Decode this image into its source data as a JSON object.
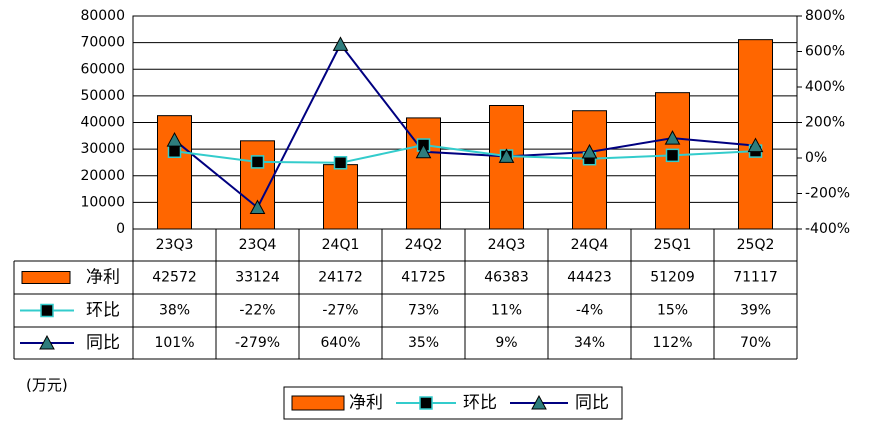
{
  "chart_data": {
    "type": "bar",
    "categories": [
      "23Q3",
      "23Q4",
      "24Q1",
      "24Q2",
      "24Q3",
      "24Q4",
      "25Q1",
      "25Q2"
    ],
    "series": [
      {
        "name": "净利",
        "type": "bar",
        "axis": "left",
        "color": "#FF6600",
        "values": [
          42572,
          33124,
          24172,
          41725,
          46383,
          44423,
          51209,
          71117
        ],
        "labels": [
          "42572",
          "33124",
          "24172",
          "41725",
          "46383",
          "44423",
          "51209",
          "71117"
        ]
      },
      {
        "name": "环比",
        "type": "line",
        "axis": "right",
        "color": "#33CCCC",
        "marker": "square",
        "values": [
          38,
          -22,
          -27,
          73,
          11,
          -4,
          15,
          39
        ],
        "labels": [
          "38%",
          "-22%",
          "-27%",
          "73%",
          "11%",
          "-4%",
          "15%",
          "39%"
        ]
      },
      {
        "name": "同比",
        "type": "line",
        "axis": "right",
        "color": "#000080",
        "marker": "triangle",
        "values": [
          101,
          -279,
          640,
          35,
          9,
          34,
          112,
          70
        ],
        "labels": [
          "101%",
          "-279%",
          "640%",
          "35%",
          "9%",
          "34%",
          "112%",
          "70%"
        ]
      }
    ],
    "y_left": {
      "min": 0,
      "max": 80000,
      "ticks": [
        "0",
        "10000",
        "20000",
        "30000",
        "40000",
        "50000",
        "60000",
        "70000",
        "80000"
      ]
    },
    "y_right": {
      "min": -400,
      "max": 800,
      "ticks": [
        "-400%",
        "-200%",
        "0%",
        "200%",
        "400%",
        "600%",
        "800%"
      ]
    },
    "unit_label": "(万元)",
    "legend_position": "bottom",
    "grid": true
  }
}
